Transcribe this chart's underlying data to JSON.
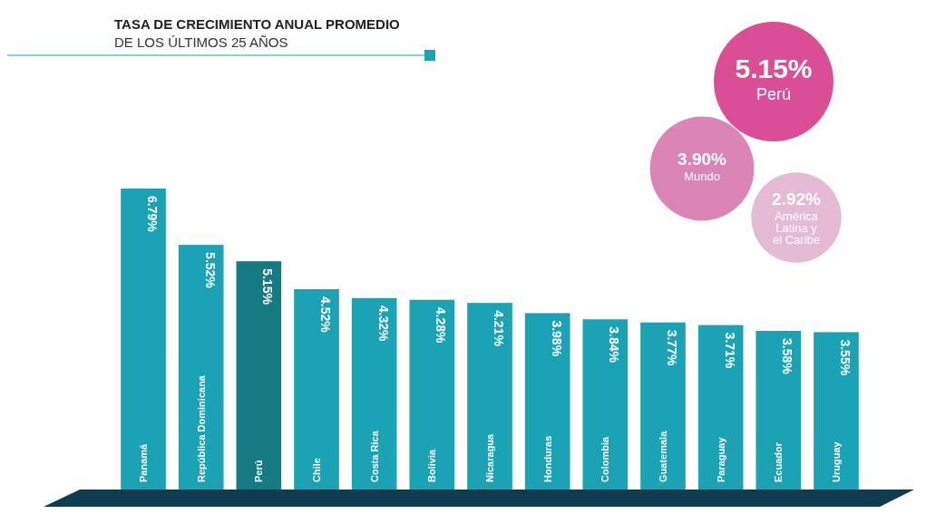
{
  "chart_data": [
    {
      "type": "bar",
      "title": "TASA DE CRECIMIENTO ANUAL PROMEDIO",
      "subtitle": "DE LOS ÚLTIMOS 25 AÑOS",
      "categories": [
        "Panamá",
        "República Dominicana",
        "Perú",
        "Chile",
        "Costa Rica",
        "Bolivia",
        "Nicaragua",
        "Honduras",
        "Colombia",
        "Guatemala",
        "Paraguay",
        "Ecuador",
        "Uruguay"
      ],
      "values": [
        6.79,
        5.52,
        5.15,
        4.52,
        4.32,
        4.28,
        4.21,
        3.98,
        3.84,
        3.77,
        3.71,
        3.58,
        3.55
      ],
      "colors": [
        "#1ba3b5",
        "#1ba3b5",
        "#167a82",
        "#1ba3b5",
        "#1ba3b5",
        "#1ba3b5",
        "#1ba3b5",
        "#1ba3b5",
        "#1ba3b5",
        "#1ba3b5",
        "#1ba3b5",
        "#1ba3b5",
        "#1ba3b5"
      ],
      "value_labels": [
        "6.79%",
        "5.52%",
        "5.15%",
        "4.52%",
        "4.32%",
        "4.28%",
        "4.21%",
        "3.98%",
        "3.84%",
        "3.77%",
        "3.71%",
        "3.58%",
        "3.55%"
      ]
    },
    {
      "type": "other",
      "categories": [
        "Perú",
        "Mundo",
        "América Latina y el Caribe"
      ],
      "values": [
        5.15,
        3.9,
        2.92
      ],
      "colors": [
        "#d63f8c",
        "#d77bb0",
        "#e2b4d1"
      ],
      "value_labels": [
        "5.15%",
        "3.90%",
        "2.92%"
      ]
    }
  ]
}
